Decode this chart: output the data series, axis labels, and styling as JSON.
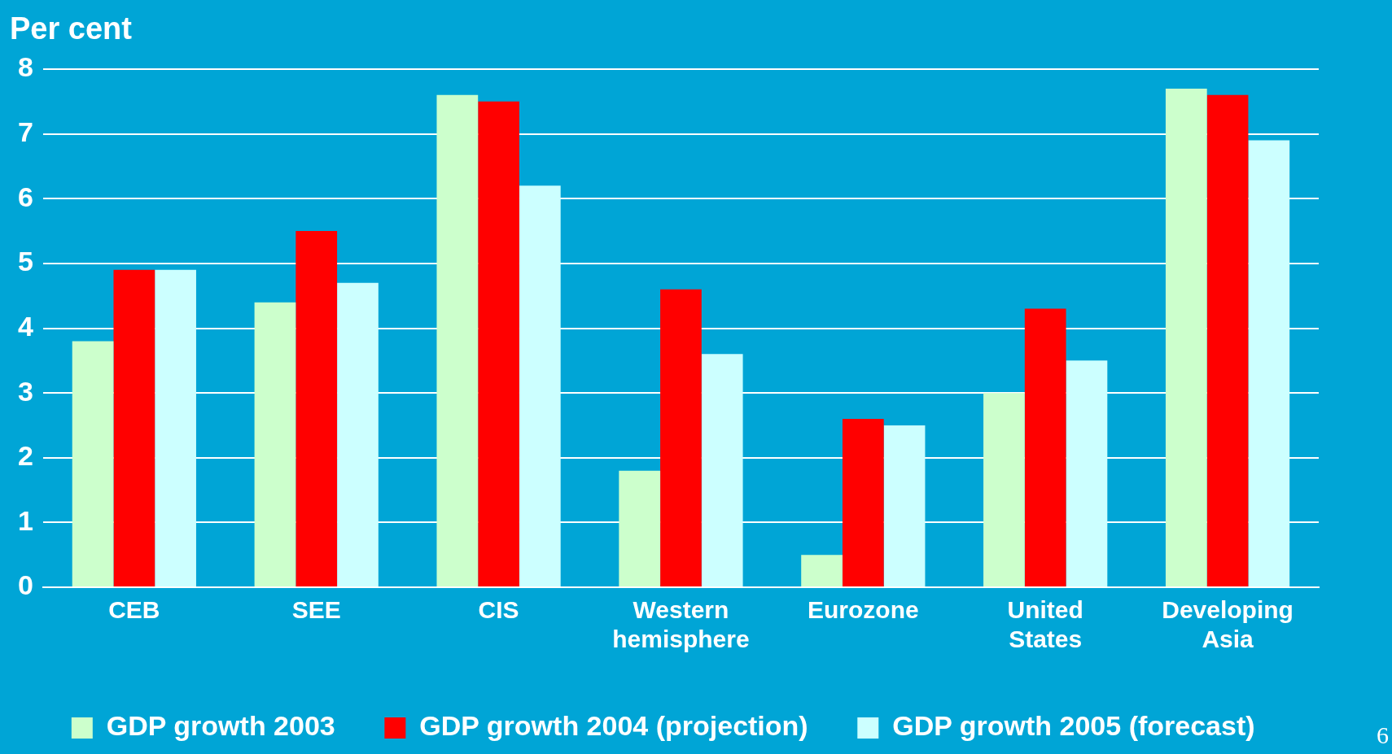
{
  "chart_data": {
    "type": "bar",
    "ylabel": "Per cent",
    "categories": [
      "CEB",
      "SEE",
      "CIS",
      "Western hemisphere",
      "Eurozone",
      "United States",
      "Developing Asia"
    ],
    "series": [
      {
        "name": "GDP growth 2003",
        "color": "#ccffcc",
        "values": [
          3.8,
          4.4,
          7.6,
          1.8,
          0.5,
          3.0,
          7.7
        ]
      },
      {
        "name": "GDP growth 2004 (projection)",
        "color": "#ff0000",
        "values": [
          4.9,
          5.5,
          7.5,
          4.6,
          2.6,
          4.3,
          7.6
        ]
      },
      {
        "name": "GDP growth 2005 (forecast)",
        "color": "#ccffff",
        "values": [
          4.9,
          4.7,
          6.2,
          3.6,
          2.5,
          3.5,
          6.9
        ]
      }
    ],
    "ylim": [
      0,
      8
    ],
    "yticks": [
      0,
      1,
      2,
      3,
      4,
      5,
      6,
      7,
      8
    ],
    "grid": "y",
    "legend": "bottom",
    "annotations": [
      "6"
    ]
  }
}
